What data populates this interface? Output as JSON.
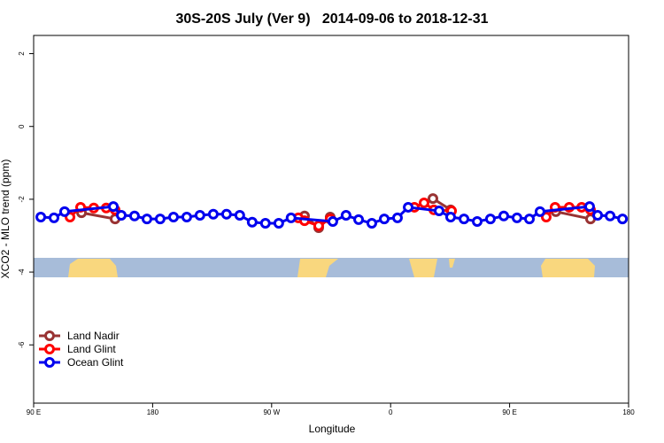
{
  "chart_data": {
    "type": "line",
    "title": "30S-20S July (Ver 9)   2014-09-06 to 2018-12-31",
    "x_label": "Longitude",
    "y_label": "XCO2 - MLO trend (ppm)",
    "xlim": [
      90,
      540
    ],
    "xticks": [
      {
        "value": 90,
        "label": "90 E"
      },
      {
        "value": 180,
        "label": "180"
      },
      {
        "value": 270,
        "label": "90 W"
      },
      {
        "value": 360,
        "label": "0"
      },
      {
        "value": 450,
        "label": "90 E"
      },
      {
        "value": 540,
        "label": "180"
      }
    ],
    "ylim": [
      -7.6,
      2.5
    ],
    "yticks": [
      2,
      0,
      -2,
      -4,
      -6
    ],
    "legend": "bottom-left",
    "series": [
      {
        "name": "Land Nadir",
        "color": "#993333",
        "x": [
          126.2,
          151.6,
          null,
          294.9,
          305.6,
          314.3,
          null,
          392,
          405.4,
          null,
          485,
          511.2
        ],
        "values": [
          -2.37,
          -2.54,
          null,
          -2.46,
          -2.78,
          -2.49,
          null,
          -1.98,
          -2.29,
          null,
          -2.34,
          -2.54
        ]
      },
      {
        "name": "Land Glint",
        "color": "#ff0000",
        "x": [
          117.5,
          125.5,
          135.5,
          144.9,
          151.6,
          null,
          290.2,
          294.9,
          305.6,
          314.3,
          null,
          378,
          385.3,
          392.7,
          406.1,
          null,
          477.7,
          484.4,
          495.1,
          504.5,
          511.2
        ],
        "values": [
          -2.49,
          -2.22,
          -2.24,
          -2.24,
          -2.29,
          null,
          -2.51,
          -2.59,
          -2.73,
          -2.54,
          null,
          -2.22,
          -2.1,
          -2.29,
          -2.32,
          null,
          -2.49,
          -2.22,
          -2.22,
          -2.22,
          -2.29
        ]
      },
      {
        "name": "Ocean Glint",
        "color": "#0000ee",
        "x": [
          95.4,
          105.4,
          113.4,
          150.3,
          156.3,
          166.3,
          175.7,
          185.7,
          195.8,
          205.8,
          215.8,
          225.9,
          235.9,
          245.9,
          255.3,
          265.3,
          275.4,
          284.7,
          316.3,
          326.3,
          335.8,
          345.8,
          355.2,
          365.2,
          373.3,
          396.7,
          405.4,
          415.5,
          425.5,
          435.5,
          445.6,
          455.6,
          465,
          473,
          510.5,
          516.6,
          526,
          535.4
        ],
        "values": [
          -2.49,
          -2.51,
          -2.34,
          -2.2,
          -2.44,
          -2.46,
          -2.54,
          -2.54,
          -2.49,
          -2.49,
          -2.44,
          -2.41,
          -2.41,
          -2.44,
          -2.63,
          -2.66,
          -2.66,
          -2.51,
          -2.61,
          -2.44,
          -2.56,
          -2.66,
          -2.54,
          -2.51,
          -2.22,
          -2.32,
          -2.49,
          -2.54,
          -2.61,
          -2.54,
          -2.46,
          -2.51,
          -2.54,
          -2.34,
          -2.2,
          -2.44,
          -2.46,
          -2.54
        ]
      }
    ]
  }
}
